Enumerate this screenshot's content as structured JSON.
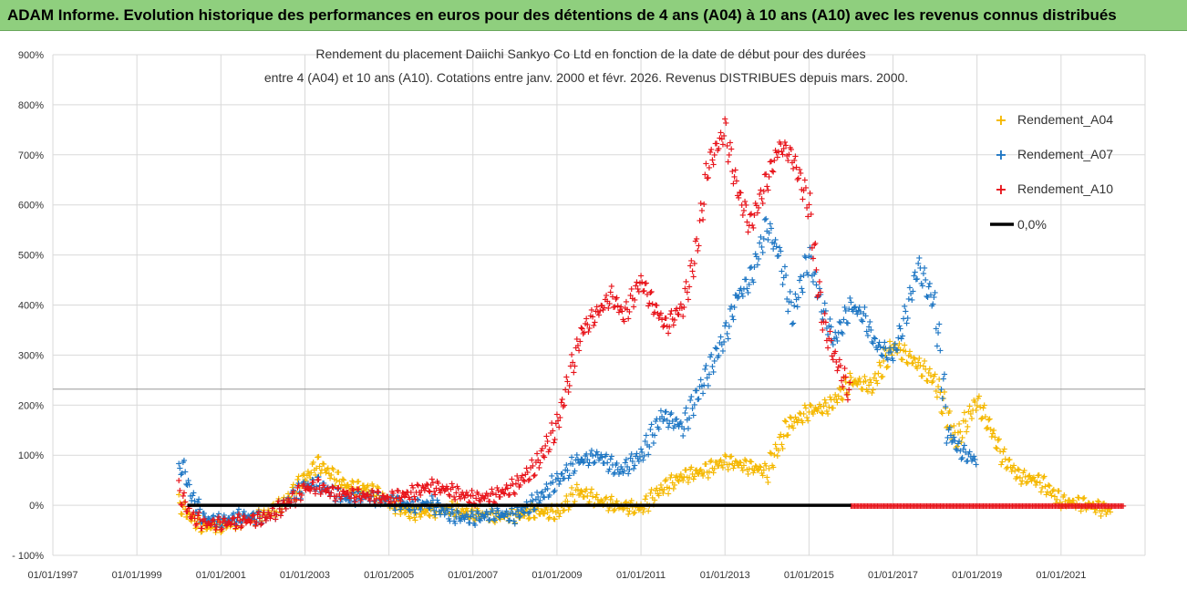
{
  "banner": {
    "title": "ADAM Informe. Evolution historique des performances en euros pour des détentions de 4 ans (A04) à 10 ans (A10) avec les revenus connus distribués"
  },
  "chart_data": {
    "type": "scatter",
    "title_lines": [
      "Rendement du placement Daiichi Sankyo Co Ltd en fonction de la date de début pour des durées",
      "entre 4 (A04) et 10 ans (A10). Cotations entre janv. 2000 et févr. 2026. Revenus DISTRIBUES depuis mars. 2000."
    ],
    "xlabel": "",
    "ylabel": "",
    "xlim": [
      1997.0,
      2023.0
    ],
    "ylim": [
      -100,
      900
    ],
    "y_ticks": [
      -100,
      0,
      100,
      200,
      300,
      400,
      500,
      600,
      700,
      800,
      900
    ],
    "y_tick_labels": [
      "- 100%",
      "0%",
      "100%",
      "200%",
      "300%",
      "400%",
      "500%",
      "600%",
      "700%",
      "800%",
      "900%"
    ],
    "x_ticks": [
      1997,
      1999,
      2001,
      2003,
      2005,
      2007,
      2009,
      2011,
      2013,
      2015,
      2017,
      2019,
      2021
    ],
    "x_tick_labels": [
      "01/01/1997",
      "01/01/1999",
      "01/01/2001",
      "01/01/2003",
      "01/01/2005",
      "01/01/2007",
      "01/01/2009",
      "01/01/2011",
      "01/01/2013",
      "01/01/2015",
      "01/01/2017",
      "01/01/2019",
      "01/01/2021"
    ],
    "reference_line_value": 232,
    "legend_position": "top-right",
    "series": [
      {
        "name": "Rendement_A04",
        "color": "#f5b800",
        "marker": "+",
        "x": [
          2000.0,
          2000.3,
          2000.6,
          2001.0,
          2001.5,
          2002.0,
          2002.5,
          2003.0,
          2003.3,
          2003.7,
          2004.0,
          2004.5,
          2005.0,
          2005.5,
          2006.0,
          2006.5,
          2007.0,
          2007.5,
          2008.0,
          2008.5,
          2009.0,
          2009.5,
          2010.0,
          2010.5,
          2011.0,
          2011.5,
          2012.0,
          2012.5,
          2013.0,
          2013.5,
          2014.0,
          2014.5,
          2015.0,
          2015.5,
          2016.0,
          2016.5,
          2017.0,
          2017.5,
          2018.0,
          2018.5,
          2019.0,
          2019.3,
          2019.6,
          2020.0,
          2020.5,
          2021.0,
          2021.5,
          2022.0,
          2022.2
        ],
        "y": [
          5,
          -25,
          -42,
          -40,
          -30,
          -20,
          5,
          55,
          85,
          60,
          40,
          35,
          10,
          -15,
          -10,
          -5,
          -15,
          -20,
          -20,
          -10,
          -15,
          30,
          10,
          0,
          -5,
          35,
          60,
          70,
          90,
          80,
          70,
          160,
          190,
          200,
          250,
          240,
          320,
          290,
          250,
          130,
          210,
          160,
          100,
          60,
          50,
          10,
          5,
          -5,
          -10
        ]
      },
      {
        "name": "Rendement_A07",
        "color": "#1f77c4",
        "marker": "+",
        "x": [
          2000.0,
          2000.1,
          2000.3,
          2000.6,
          2001.0,
          2001.5,
          2002.0,
          2002.5,
          2003.0,
          2003.3,
          2003.7,
          2004.0,
          2004.5,
          2005.0,
          2005.5,
          2006.0,
          2006.5,
          2007.0,
          2007.5,
          2008.0,
          2008.5,
          2009.0,
          2009.5,
          2010.0,
          2010.5,
          2011.0,
          2011.5,
          2012.0,
          2012.5,
          2013.0,
          2013.3,
          2013.6,
          2014.0,
          2014.3,
          2014.6,
          2015.0,
          2015.3,
          2015.6,
          2016.0,
          2016.3,
          2016.6,
          2017.0,
          2017.3,
          2017.6,
          2018.0,
          2018.3,
          2018.6,
          2019.0
        ],
        "y": [
          70,
          80,
          20,
          -25,
          -30,
          -20,
          -25,
          0,
          40,
          45,
          25,
          15,
          20,
          10,
          0,
          5,
          -20,
          -25,
          -15,
          -20,
          10,
          50,
          90,
          100,
          70,
          100,
          180,
          160,
          250,
          340,
          420,
          450,
          560,
          500,
          380,
          500,
          400,
          330,
          400,
          380,
          320,
          300,
          380,
          480,
          400,
          150,
          110,
          90
        ]
      },
      {
        "name": "Rendement_A10",
        "color": "#e8141b",
        "marker": "+",
        "x": [
          2000.0,
          2000.3,
          2000.6,
          2001.0,
          2001.5,
          2002.0,
          2002.5,
          2003.0,
          2003.3,
          2003.7,
          2004.0,
          2004.5,
          2005.0,
          2005.5,
          2006.0,
          2006.5,
          2007.0,
          2007.5,
          2008.0,
          2008.5,
          2009.0,
          2009.3,
          2009.6,
          2010.0,
          2010.3,
          2010.6,
          2011.0,
          2011.3,
          2011.6,
          2012.0,
          2012.3,
          2012.6,
          2013.0,
          2013.3,
          2013.6,
          2014.0,
          2014.3,
          2014.6,
          2015.0,
          2015.3,
          2015.6,
          2016.0
        ],
        "y": [
          30,
          -20,
          -35,
          -35,
          -30,
          -25,
          0,
          35,
          40,
          25,
          25,
          20,
          15,
          25,
          40,
          30,
          15,
          20,
          40,
          80,
          160,
          260,
          350,
          390,
          420,
          380,
          450,
          400,
          360,
          400,
          500,
          680,
          750,
          630,
          560,
          650,
          720,
          700,
          600,
          380,
          300,
          220
        ]
      },
      {
        "name": "Rendement_A10_zero",
        "color": "#e8141b",
        "marker": "+",
        "x": [
          2016.0,
          2022.5
        ],
        "y": [
          0,
          0
        ]
      }
    ],
    "zero_line": {
      "label": "0,0%",
      "x_start": 2000.2,
      "x_end": 2016.0,
      "value": 0,
      "color": "#000000"
    },
    "legend": [
      "Rendement_A04",
      "Rendement_A07",
      "Rendement_A10",
      "0,0%"
    ]
  }
}
